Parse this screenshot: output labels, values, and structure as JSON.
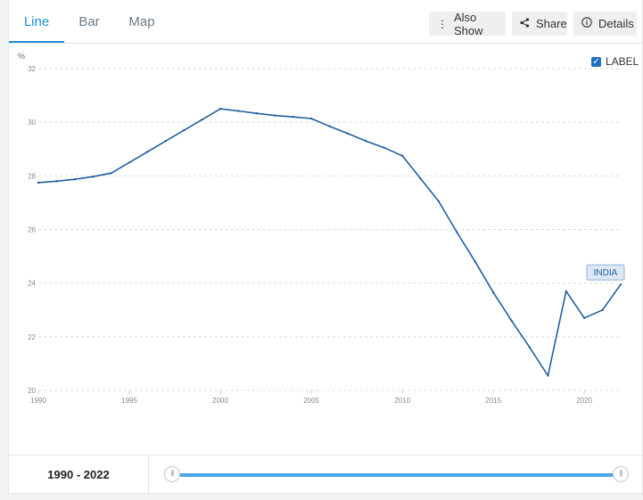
{
  "tabs": [
    {
      "label": "Line",
      "active": true
    },
    {
      "label": "Bar",
      "active": false
    },
    {
      "label": "Map",
      "active": false
    }
  ],
  "toolbar": {
    "also_show_label": "Also Show",
    "share_label": "Share",
    "details_label": "Details"
  },
  "legend": {
    "label_toggle": "LABEL",
    "checked": true
  },
  "footer": {
    "range_text": "1990 - 2022"
  },
  "colors": {
    "accent": "#1e8fd1",
    "line": "#1f5fa0",
    "slider": "#4aa8e8"
  },
  "chart_data": {
    "type": "line",
    "ylabel": "%",
    "ylim": [
      20,
      32
    ],
    "yticks": [
      20,
      22,
      24,
      26,
      28,
      30,
      32
    ],
    "xlim": [
      1990,
      2022
    ],
    "xticks": [
      1990,
      1995,
      2000,
      2005,
      2010,
      2015,
      2020
    ],
    "grid": true,
    "series": [
      {
        "name": "INDIA",
        "x": [
          1990,
          1991,
          1992,
          1993,
          1994,
          1995,
          1996,
          1997,
          1998,
          1999,
          2000,
          2001,
          2002,
          2003,
          2004,
          2005,
          2006,
          2007,
          2008,
          2009,
          2010,
          2011,
          2012,
          2013,
          2014,
          2015,
          2016,
          2017,
          2018,
          2019,
          2020,
          2021,
          2022
        ],
        "values": [
          27.75,
          27.8,
          27.87,
          27.97,
          28.1,
          28.5,
          28.9,
          29.3,
          29.7,
          30.1,
          30.5,
          30.42,
          30.33,
          30.25,
          30.2,
          30.14,
          29.85,
          29.58,
          29.3,
          29.05,
          28.75,
          27.9,
          27.05,
          25.9,
          24.8,
          23.65,
          22.6,
          21.6,
          20.55,
          23.7,
          22.7,
          23.0,
          23.95
        ]
      }
    ]
  }
}
